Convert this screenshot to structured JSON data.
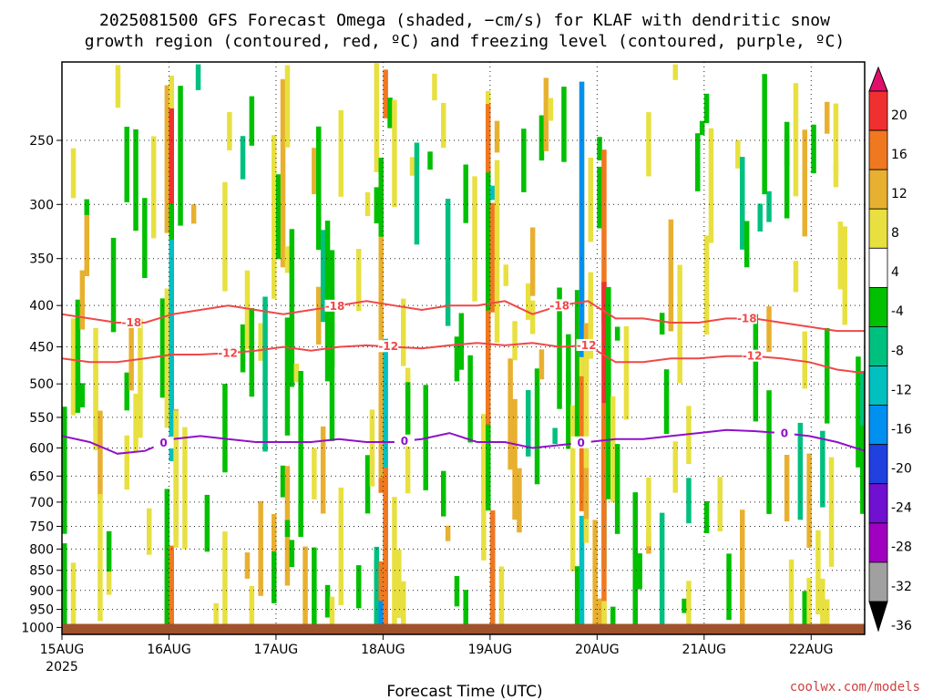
{
  "title_line1": "2025081500 GFS Forecast Omega (shaded, −cm/s) for KLAF with dendritic snow",
  "title_line2": "growth region (contoured, red, ºC) and freezing level (contoured, purple, ºC)",
  "xlabel": "Forecast Time (UTC)",
  "credit": "coolwx.com/models",
  "year_label": "2025",
  "colors": {
    "red_contour": "#f04848",
    "purple_contour": "#9010c8",
    "ground": "#a0522d"
  },
  "chart_data": {
    "type": "heatmap",
    "x_ticks": [
      "15AUG",
      "16AUG",
      "17AUG",
      "18AUG",
      "19AUG",
      "20AUG",
      "21AUG",
      "22AUG"
    ],
    "x_range_days": [
      0,
      7.5
    ],
    "y_ticks": [
      250,
      300,
      350,
      400,
      450,
      500,
      550,
      600,
      650,
      700,
      750,
      800,
      850,
      900,
      950,
      1000
    ],
    "y_range_hpa": [
      200,
      1020
    ],
    "y_scale": "log-pressure",
    "colorbar": {
      "levels": [
        20,
        16,
        12,
        8,
        4,
        -4,
        -8,
        -12,
        -16,
        -20,
        -24,
        -28,
        -32,
        -36
      ],
      "colors": [
        "#e0106a",
        "#f03030",
        "#f07820",
        "#e8b030",
        "#e8e040",
        "#ffffff",
        "#00c000",
        "#00c080",
        "#00c0c0",
        "#0090f0",
        "#2040e0",
        "#7010d0",
        "#a000c0",
        "#a0a0a0",
        "#000000"
      ]
    },
    "contours": [
      {
        "label": "-18",
        "color": "#f04848",
        "label_positions_days": [
          0.65,
          2.55,
          4.65,
          6.4
        ],
        "pressure_hpa": [
          410,
          415,
          420,
          420,
          410,
          405,
          400,
          405,
          410,
          405,
          400,
          395,
          400,
          405,
          400,
          400,
          395,
          410,
          400,
          395,
          415,
          415,
          420,
          420,
          415,
          415,
          420,
          425,
          430,
          430
        ]
      },
      {
        "label": "-12",
        "color": "#f04848",
        "label_positions_days": [
          1.55,
          3.05,
          4.9,
          6.45
        ],
        "pressure_hpa": [
          465,
          470,
          470,
          465,
          460,
          460,
          458,
          455,
          450,
          455,
          450,
          448,
          450,
          452,
          448,
          445,
          448,
          445,
          450,
          448,
          470,
          470,
          465,
          465,
          462,
          462,
          465,
          470,
          480,
          485
        ]
      },
      {
        "label": "0",
        "color": "#9010c8",
        "label_positions_days": [
          0.95,
          3.2,
          4.85,
          6.75
        ],
        "pressure_hpa": [
          580,
          590,
          610,
          605,
          585,
          580,
          585,
          590,
          590,
          590,
          585,
          590,
          590,
          585,
          575,
          590,
          590,
          600,
          595,
          590,
          585,
          585,
          580,
          575,
          570,
          572,
          575,
          580,
          590,
          605
        ]
      }
    ],
    "colorbar_end_triangles": {
      "top": "#e0106a",
      "bottom": "#000000"
    }
  }
}
